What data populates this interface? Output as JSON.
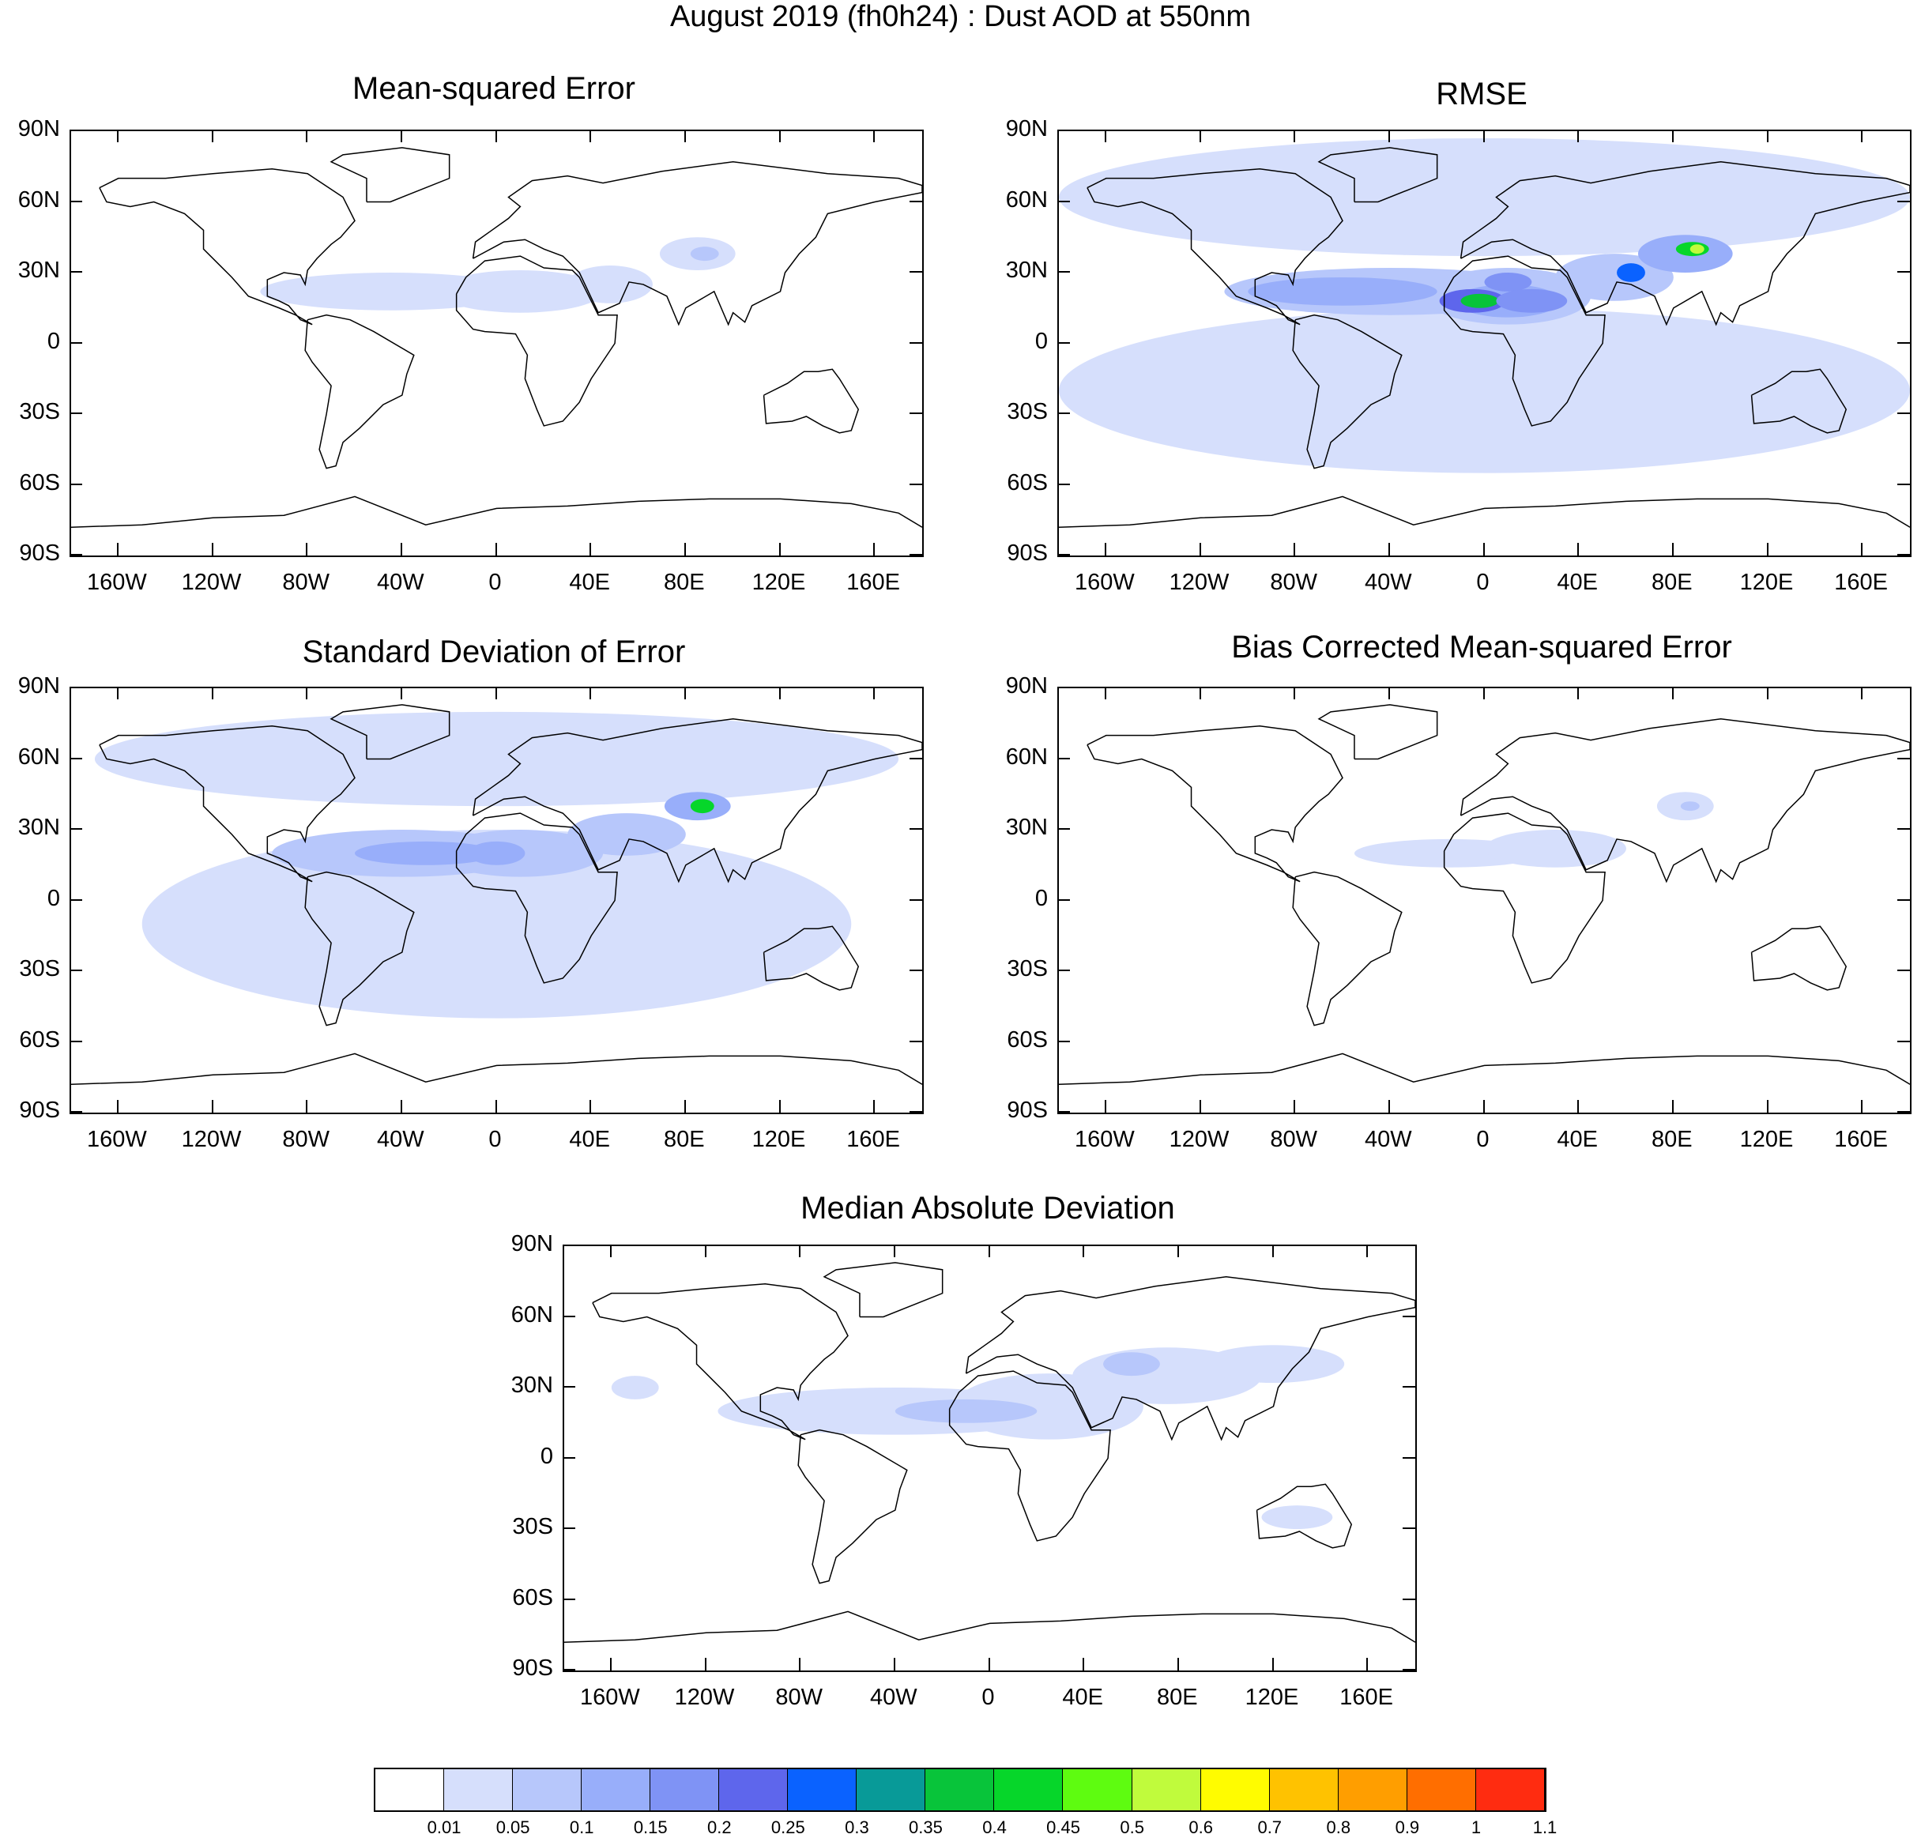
{
  "title": "August 2019 (fh0h24) : Dust AOD at 550nm",
  "lat_labels": [
    "90N",
    "60N",
    "30N",
    "0",
    "30S",
    "60S",
    "90S"
  ],
  "lon_labels": [
    "160W",
    "120W",
    "80W",
    "40W",
    "0",
    "40E",
    "80E",
    "120E",
    "160E"
  ],
  "panels": [
    {
      "title": "Mean-squared Error",
      "intensity": "low"
    },
    {
      "title": "RMSE",
      "intensity": "high"
    },
    {
      "title": "Standard Deviation of Error",
      "intensity": "medium"
    },
    {
      "title": "Bias Corrected Mean-squared Error",
      "intensity": "very-low"
    },
    {
      "title": "Median Absolute Deviation",
      "intensity": "medium-low"
    }
  ],
  "colorbar": {
    "labels": [
      "0.01",
      "0.05",
      "0.1",
      "0.15",
      "0.2",
      "0.25",
      "0.3",
      "0.35",
      "0.4",
      "0.45",
      "0.5",
      "0.6",
      "0.7",
      "0.8",
      "0.9",
      "1",
      "1.1"
    ],
    "colors": [
      "#ffffff",
      "#d6dffc",
      "#b7c7fb",
      "#98aefa",
      "#7f93f5",
      "#5e66ec",
      "#0a62ff",
      "#089a98",
      "#08c43a",
      "#06d62a",
      "#5efc10",
      "#c0fb3c",
      "#fffc00",
      "#ffc200",
      "#ff9e00",
      "#ff6e00",
      "#ff2c10"
    ]
  }
}
